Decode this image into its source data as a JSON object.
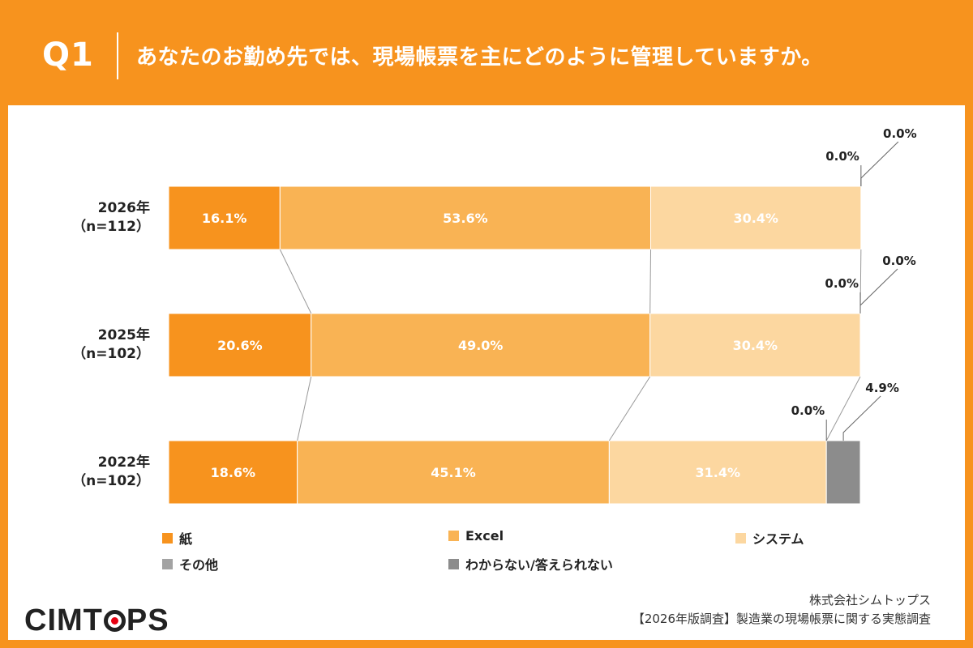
{
  "header": {
    "q_label": "Q1",
    "question": "あなたのお勤め先では、現場帳票を主にどのように管理していますか。"
  },
  "colors": {
    "background": "#F7931E",
    "paper": "#F7931E",
    "excel": "#F9B354",
    "system": "#FCD7A0",
    "other": "#A3A3A3",
    "unknown": "#8C8C8C"
  },
  "chart_data": {
    "type": "bar",
    "orientation": "horizontal-stacked-100",
    "categories": [
      "2026年\n（n=112）",
      "2025年\n（n=102）",
      "2022年\n（n=102）"
    ],
    "category_lines": [
      [
        "2026年",
        "（n=112）"
      ],
      [
        "2025年",
        "（n=102）"
      ],
      [
        "2022年",
        "（n=102）"
      ]
    ],
    "series": [
      {
        "name": "紙",
        "values": [
          16.1,
          20.6,
          18.6
        ],
        "labels": [
          "16.1%",
          "20.6%",
          "18.6%"
        ],
        "color": "#F7931E"
      },
      {
        "name": "Excel",
        "values": [
          53.6,
          49.0,
          45.1
        ],
        "labels": [
          "53.6%",
          "49.0%",
          "45.1%"
        ],
        "color": "#F9B354"
      },
      {
        "name": "システム",
        "values": [
          30.4,
          30.4,
          31.4
        ],
        "labels": [
          "30.4%",
          "30.4%",
          "31.4%"
        ],
        "color": "#FCD7A0"
      },
      {
        "name": "その他",
        "values": [
          0.0,
          0.0,
          0.0
        ],
        "labels": [
          "0.0%",
          "0.0%",
          "0.0%"
        ],
        "color": "#A3A3A3"
      },
      {
        "name": "わからない/答えられない",
        "values": [
          0.0,
          0.0,
          4.9
        ],
        "labels": [
          "0.0%",
          "0.0%",
          "4.9%"
        ],
        "color": "#8C8C8C"
      }
    ],
    "xlim": [
      0,
      100
    ],
    "legend_position": "bottom",
    "grid": false
  },
  "footer": {
    "logo_left": "CIMT",
    "logo_right": "PS",
    "company": "株式会社シムトップス",
    "survey": "【2026年版調査】製造業の現場帳票に関する実態調査"
  }
}
